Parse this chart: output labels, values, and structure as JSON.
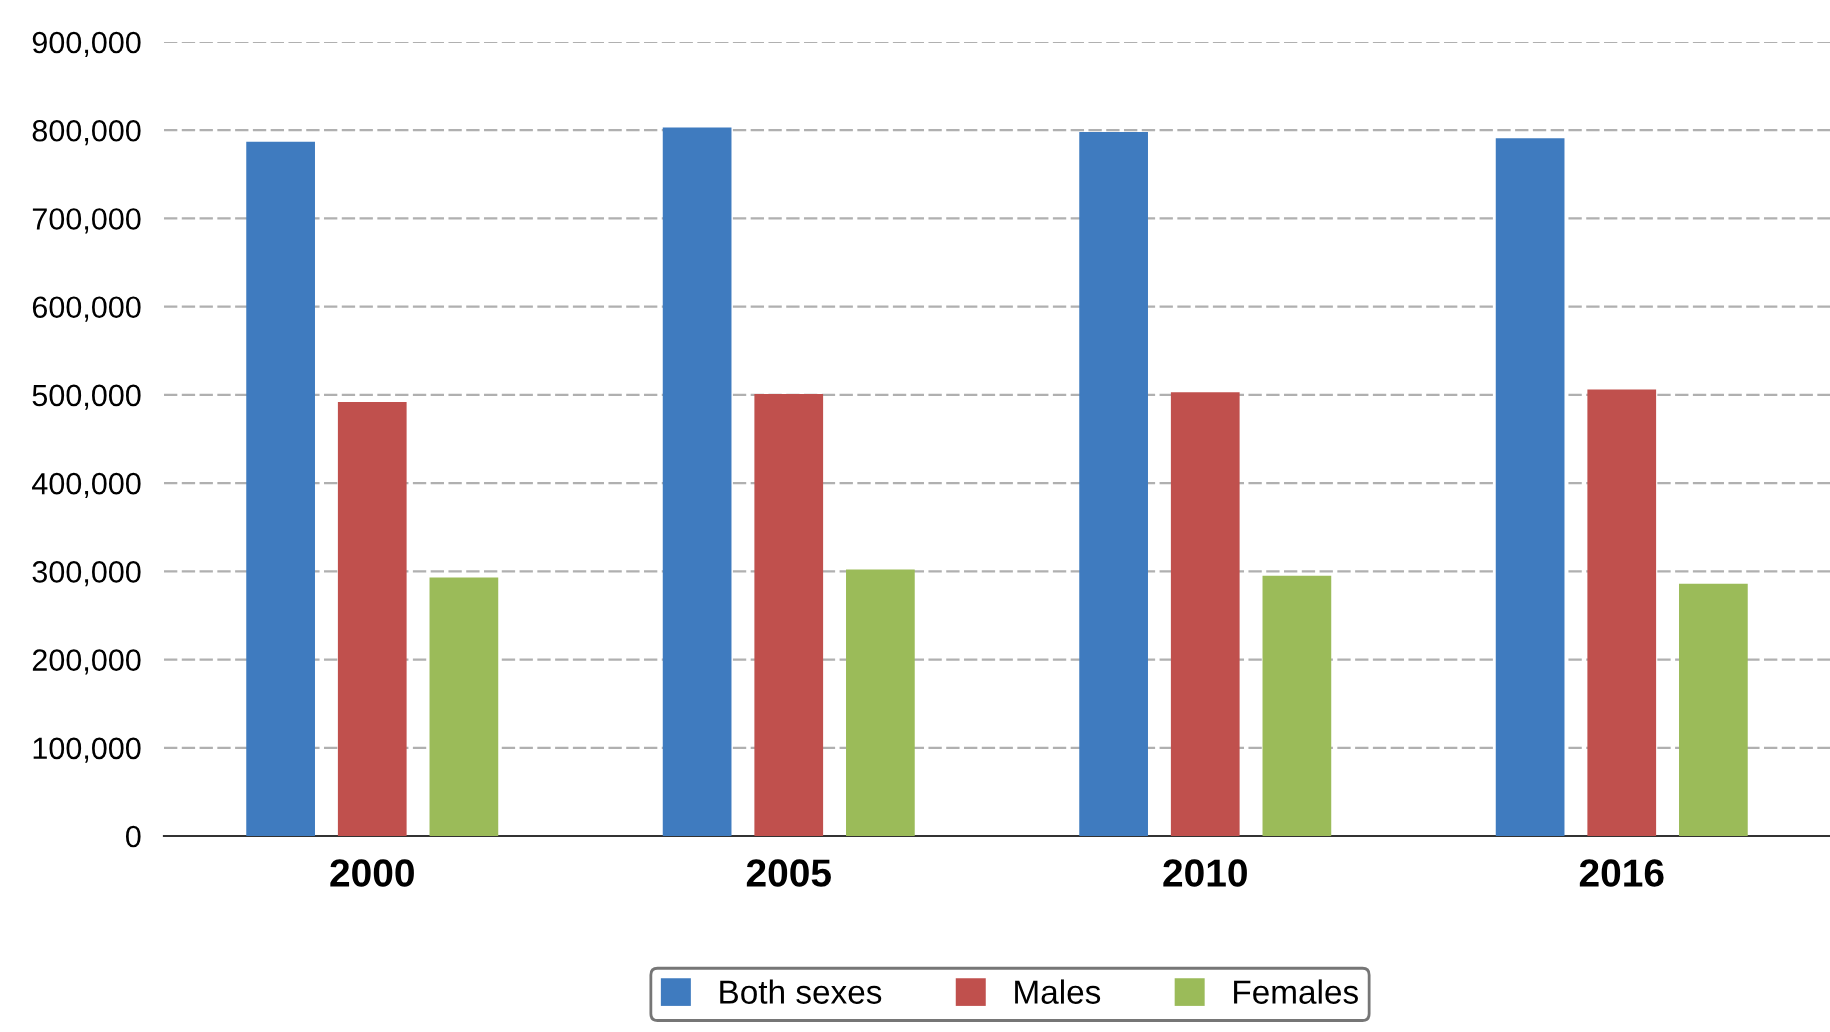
{
  "chart_data": {
    "type": "bar",
    "categories": [
      "2000",
      "2005",
      "2010",
      "2016"
    ],
    "series": [
      {
        "name": "Both sexes",
        "color": "#3f7bbf",
        "values": [
          787000,
          803000,
          798000,
          791000
        ]
      },
      {
        "name": "Males",
        "color": "#c0504d",
        "values": [
          492000,
          501000,
          503000,
          506000
        ]
      },
      {
        "name": "Females",
        "color": "#9bbb59",
        "values": [
          293000,
          302000,
          295000,
          286000
        ]
      }
    ],
    "ylim": [
      0,
      900000
    ],
    "yticks": [
      {
        "value": 0,
        "label": "0"
      },
      {
        "value": 100000,
        "label": "100,000"
      },
      {
        "value": 200000,
        "label": "200,000"
      },
      {
        "value": 300000,
        "label": "300,000"
      },
      {
        "value": 400000,
        "label": "400,000"
      },
      {
        "value": 500000,
        "label": "500,000"
      },
      {
        "value": 600000,
        "label": "600,000"
      },
      {
        "value": 700000,
        "label": "700,000"
      },
      {
        "value": 800000,
        "label": "800,000"
      },
      {
        "value": 900000,
        "label": "900,000"
      }
    ],
    "grid": "y",
    "legend": "bottom"
  }
}
